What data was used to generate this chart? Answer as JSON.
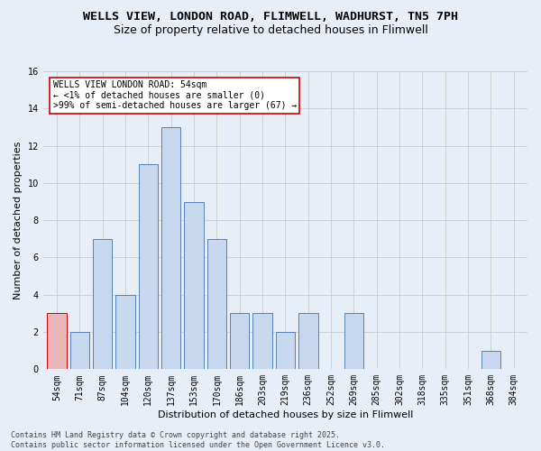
{
  "title_line1": "WELLS VIEW, LONDON ROAD, FLIMWELL, WADHURST, TN5 7PH",
  "title_line2": "Size of property relative to detached houses in Flimwell",
  "xlabel": "Distribution of detached houses by size in Flimwell",
  "ylabel": "Number of detached properties",
  "categories": [
    "54sqm",
    "71sqm",
    "87sqm",
    "104sqm",
    "120sqm",
    "137sqm",
    "153sqm",
    "170sqm",
    "186sqm",
    "203sqm",
    "219sqm",
    "236sqm",
    "252sqm",
    "269sqm",
    "285sqm",
    "302sqm",
    "318sqm",
    "335sqm",
    "351sqm",
    "368sqm",
    "384sqm"
  ],
  "values": [
    3,
    2,
    7,
    4,
    11,
    13,
    9,
    7,
    3,
    3,
    2,
    3,
    0,
    3,
    0,
    0,
    0,
    0,
    0,
    1,
    0
  ],
  "bar_color": "#c8d8ee",
  "bar_edge_color": "#5580b0",
  "highlight_index": 0,
  "highlight_bar_color": "#e8b8b8",
  "highlight_bar_edge_color": "#cc0000",
  "annotation_box_text": "WELLS VIEW LONDON ROAD: 54sqm\n← <1% of detached houses are smaller (0)\n>99% of semi-detached houses are larger (67) →",
  "annotation_box_edge_color": "#cc0000",
  "annotation_box_bg": "#ffffff",
  "ylim": [
    0,
    16
  ],
  "yticks": [
    0,
    2,
    4,
    6,
    8,
    10,
    12,
    14,
    16
  ],
  "grid_color": "#cccccc",
  "background_color": "#e8eef8",
  "plot_bg_color": "#e8eef8",
  "footer_text": "Contains HM Land Registry data © Crown copyright and database right 2025.\nContains public sector information licensed under the Open Government Licence v3.0.",
  "title_fontsize": 9.5,
  "subtitle_fontsize": 9,
  "axis_label_fontsize": 8,
  "tick_fontsize": 7,
  "annotation_fontsize": 7,
  "footer_fontsize": 6
}
